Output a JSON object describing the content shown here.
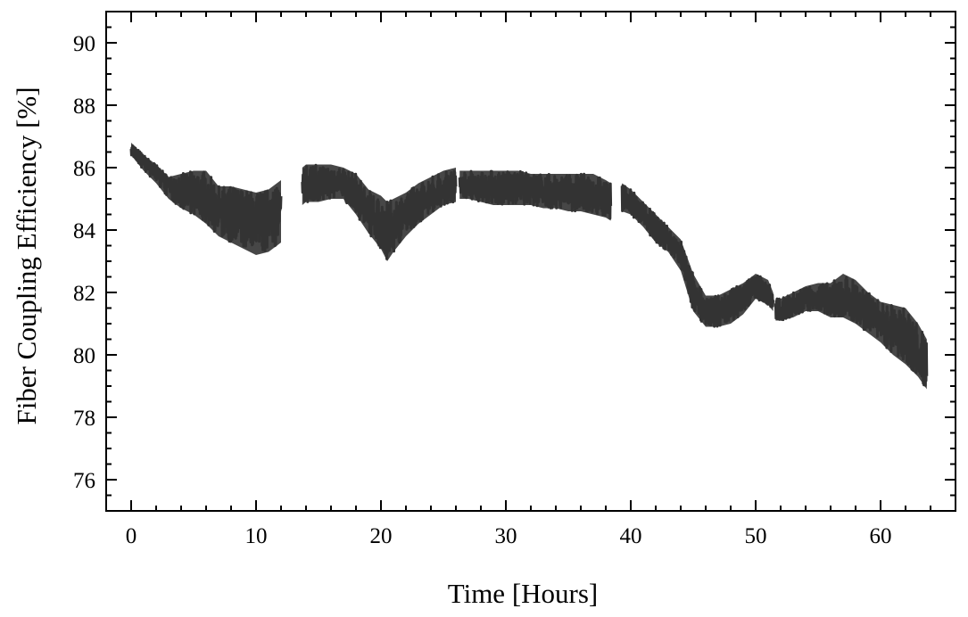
{
  "chart_data": {
    "type": "line",
    "title": "",
    "xlabel": "Time [Hours]",
    "ylabel": "Fiber Coupling Efficiency [%]",
    "xlim": [
      -2,
      66
    ],
    "ylim": [
      75,
      91
    ],
    "xticks": [
      0,
      10,
      20,
      30,
      40,
      50,
      60
    ],
    "yticks": [
      76,
      78,
      80,
      82,
      84,
      86,
      88,
      90
    ],
    "grid": false,
    "legend": "none",
    "series": [
      {
        "color": "#333333",
        "segments": [
          {
            "x": [
              0,
              1,
              2,
              3,
              4,
              5,
              6,
              7,
              8,
              9,
              10,
              11,
              12
            ],
            "mean": [
              86.6,
              86.2,
              85.9,
              85.5,
              85.3,
              85.1,
              84.9,
              84.7,
              84.6,
              84.5,
              84.4,
              84.5,
              84.8
            ],
            "min": [
              86.4,
              85.9,
              85.5,
              85.0,
              84.7,
              84.5,
              84.2,
              83.8,
              83.6,
              83.4,
              83.2,
              83.3,
              83.6
            ],
            "max": [
              86.8,
              86.4,
              86.1,
              85.7,
              85.8,
              85.9,
              85.9,
              85.4,
              85.4,
              85.3,
              85.2,
              85.3,
              85.6
            ]
          },
          {
            "x": [
              13.7,
              14,
              15,
              16,
              17,
              18,
              19,
              20,
              20.5,
              21,
              22,
              23,
              24,
              25,
              26
            ],
            "mean": [
              85.3,
              85.4,
              85.4,
              85.5,
              85.5,
              85.1,
              84.6,
              84.0,
              83.7,
              84.1,
              84.5,
              84.8,
              85.0,
              85.2,
              85.4
            ],
            "min": [
              84.8,
              84.9,
              84.9,
              85.0,
              85.0,
              84.5,
              83.9,
              83.4,
              83.0,
              83.3,
              83.8,
              84.2,
              84.5,
              84.8,
              84.9
            ],
            "max": [
              86.0,
              86.1,
              86.1,
              86.1,
              86.0,
              85.8,
              85.3,
              85.1,
              84.9,
              85.0,
              85.2,
              85.5,
              85.7,
              85.9,
              86.0
            ]
          },
          {
            "x": [
              26.3,
              27,
              28,
              29,
              30,
              31,
              32,
              33,
              34,
              35,
              36,
              37,
              38,
              38.4
            ],
            "mean": [
              85.4,
              85.4,
              85.4,
              85.4,
              85.4,
              85.3,
              85.3,
              85.3,
              85.2,
              85.2,
              85.2,
              85.1,
              85.0,
              84.9
            ],
            "min": [
              85.0,
              85.0,
              84.9,
              84.8,
              84.8,
              84.8,
              84.8,
              84.7,
              84.7,
              84.6,
              84.6,
              84.5,
              84.4,
              84.3
            ],
            "max": [
              85.9,
              85.9,
              85.9,
              85.9,
              85.9,
              85.9,
              85.8,
              85.8,
              85.8,
              85.8,
              85.8,
              85.8,
              85.6,
              85.5
            ]
          },
          {
            "x": [
              39.3,
              40,
              41,
              42,
              43,
              44,
              45,
              46,
              47,
              48,
              49,
              50,
              51,
              51.4
            ],
            "mean": [
              85.0,
              84.9,
              84.5,
              84.0,
              83.7,
              83.2,
              82.0,
              81.4,
              81.4,
              81.6,
              81.8,
              82.2,
              82.0,
              81.7
            ],
            "min": [
              84.6,
              84.5,
              84.1,
              83.6,
              83.3,
              82.7,
              81.4,
              80.9,
              80.9,
              81.0,
              81.3,
              81.8,
              81.6,
              81.4
            ],
            "max": [
              85.5,
              85.3,
              84.9,
              84.5,
              84.1,
              83.7,
              82.6,
              81.9,
              81.9,
              82.1,
              82.3,
              82.6,
              82.4,
              82.0
            ]
          },
          {
            "x": [
              51.6,
              52,
              53,
              54,
              55,
              56,
              57,
              58,
              59,
              60,
              61,
              62,
              63,
              63.7
            ],
            "mean": [
              81.3,
              81.3,
              81.5,
              81.8,
              81.8,
              81.7,
              81.8,
              81.6,
              81.3,
              81.0,
              80.7,
              80.4,
              80.0,
              79.7
            ],
            "min": [
              81.1,
              81.1,
              81.2,
              81.4,
              81.4,
              81.2,
              81.2,
              81.0,
              80.7,
              80.4,
              80.0,
              79.7,
              79.3,
              78.9
            ],
            "max": [
              81.8,
              81.8,
              82.0,
              82.2,
              82.3,
              82.3,
              82.6,
              82.4,
              82.0,
              81.7,
              81.6,
              81.5,
              81.0,
              80.5
            ]
          }
        ]
      }
    ]
  }
}
